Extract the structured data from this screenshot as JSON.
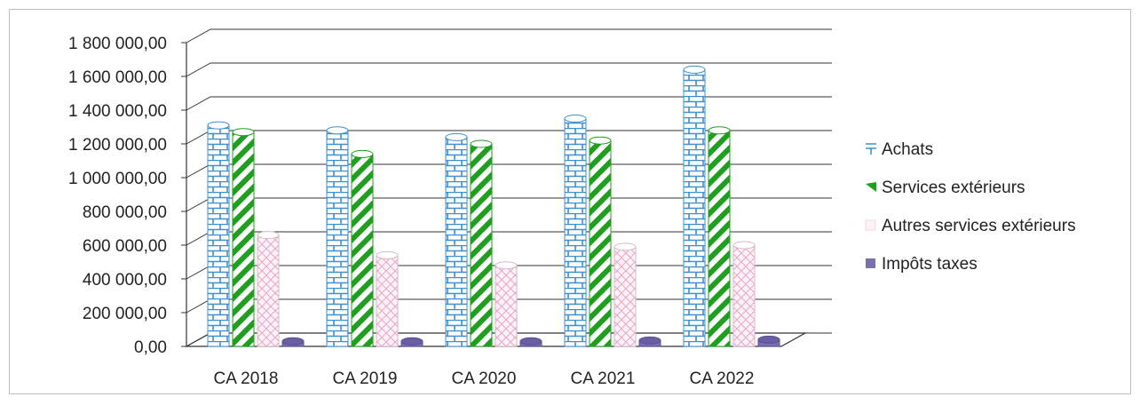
{
  "chart_data": {
    "type": "bar",
    "categories": [
      "CA 2018",
      "CA 2019",
      "CA 2020",
      "CA 2021",
      "CA 2022"
    ],
    "series": [
      {
        "name": "Achats",
        "values": [
          1310000,
          1280000,
          1240000,
          1350000,
          1640000
        ]
      },
      {
        "name": "Services extérieurs",
        "values": [
          1270000,
          1140000,
          1200000,
          1220000,
          1280000
        ]
      },
      {
        "name": "Autres services extérieurs",
        "values": [
          660000,
          540000,
          480000,
          590000,
          600000
        ]
      },
      {
        "name": "Impôts taxes",
        "values": [
          30000,
          30000,
          30000,
          35000,
          40000
        ]
      }
    ],
    "ylim": [
      0,
      1800000
    ],
    "yticks": [
      "0,00",
      "200 000,00",
      "400 000,00",
      "600 000,00",
      "800 000,00",
      "1 000 000,00",
      "1 200 000,00",
      "1 400 000,00",
      "1 600 000,00",
      "1 800 000,00"
    ],
    "grid": true,
    "legend": "right",
    "style": "3d-clustered-bar",
    "colors": [
      "#3d8fd4",
      "#1f9e1f",
      "#e8a6c8",
      "#7b6fb0"
    ]
  }
}
